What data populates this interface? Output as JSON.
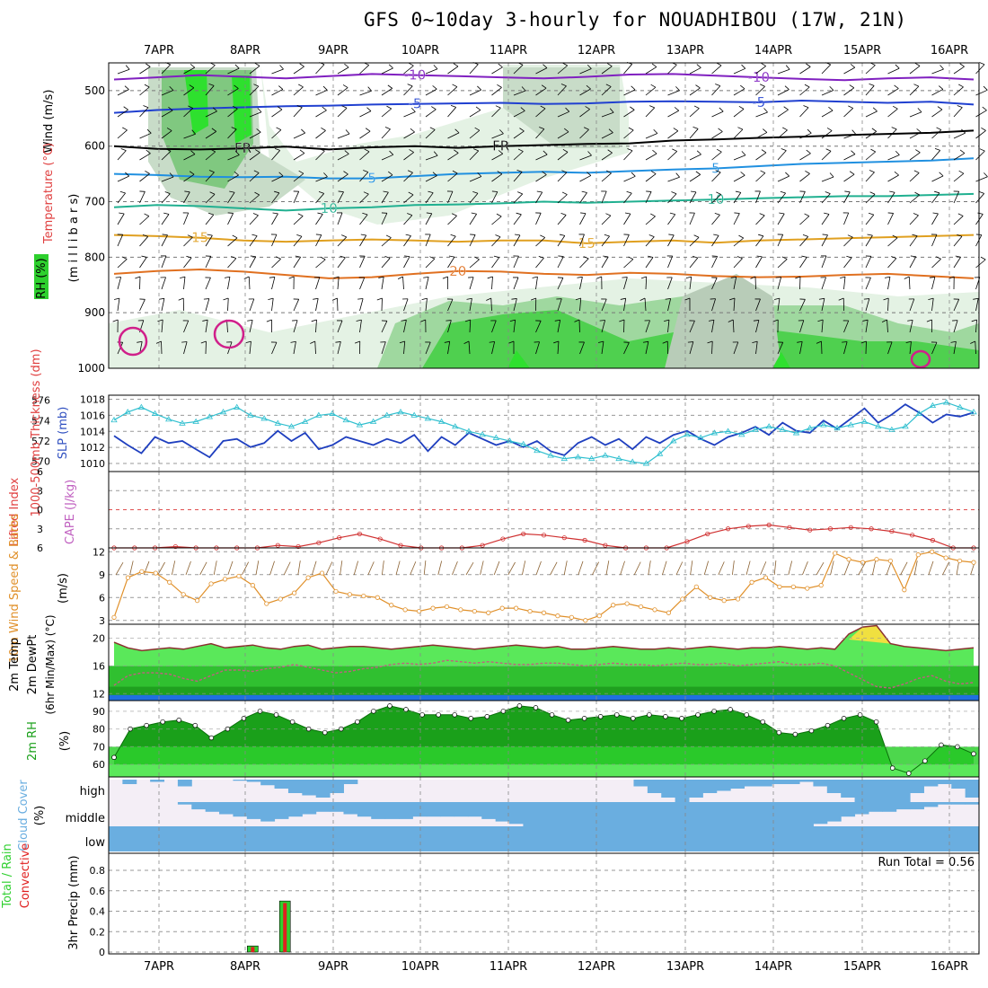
{
  "title": "GFS 0~10day 3-hourly for NOUADHIBOU (17W, 21N)",
  "date_labels": [
    "7APR",
    "8APR",
    "9APR",
    "10APR",
    "11APR",
    "12APR",
    "13APR",
    "14APR",
    "15APR",
    "16APR"
  ],
  "run_total": "Run Total = 0.56",
  "colors": {
    "wind_barb": "#000000",
    "thickness": "#1f3fbf",
    "slp": "#2fbfcf",
    "lifted": "#d03030",
    "wind10": "#e0902a",
    "temp": "#4fe04f",
    "rh": "#1aa01a",
    "cloud": "#6aaee0",
    "precip_total": "#2fd02f",
    "precip_conv": "#e02020"
  },
  "chart_data": [
    {
      "type": "contour",
      "panel": "upper-air",
      "ylabels": [
        "Wind (m/s)",
        "Temperature (°C)",
        "RH (%)",
        "(m i l l i b a r s)"
      ],
      "yticks": [
        500,
        600,
        700,
        800,
        900,
        1000
      ],
      "ylim": [
        450,
        1000
      ],
      "contour_labels": [
        "-10",
        "-5",
        "FR",
        "5",
        "10",
        "15",
        "20",
        "30"
      ],
      "isotherms": [
        {
          "name": "-10",
          "color": "#8020c0",
          "y": [
            480,
            476,
            472,
            475,
            478,
            474,
            470,
            472,
            474,
            476,
            478,
            475,
            471,
            470,
            473,
            476,
            479,
            481,
            478,
            476,
            480
          ]
        },
        {
          "name": "-5",
          "color": "#2040d0",
          "y": [
            540,
            535,
            532,
            530,
            528,
            527,
            525,
            524,
            523,
            522,
            524,
            523,
            520,
            519,
            520,
            521,
            518,
            520,
            522,
            520,
            525
          ]
        },
        {
          "name": "FR",
          "color": "#000000",
          "y": [
            600,
            605,
            606,
            604,
            601,
            606,
            602,
            600,
            603,
            600,
            598,
            596,
            595,
            590,
            588,
            585,
            583,
            580,
            578,
            576,
            572
          ]
        },
        {
          "name": "5",
          "color": "#2090e0",
          "y": [
            650,
            652,
            655,
            656,
            655,
            658,
            658,
            654,
            650,
            648,
            646,
            648,
            645,
            642,
            640,
            636,
            632,
            630,
            628,
            626,
            622
          ]
        },
        {
          "name": "10",
          "color": "#20b090",
          "y": [
            710,
            706,
            708,
            712,
            716,
            712,
            710,
            706,
            705,
            703,
            700,
            702,
            700,
            698,
            696,
            694,
            692,
            690,
            690,
            688,
            686
          ]
        },
        {
          "name": "15",
          "color": "#e0a020",
          "y": [
            760,
            762,
            765,
            770,
            772,
            770,
            768,
            770,
            772,
            770,
            770,
            775,
            772,
            770,
            774,
            770,
            768,
            766,
            764,
            762,
            760
          ]
        },
        {
          "name": "20",
          "color": "#e07020",
          "y": [
            830,
            825,
            822,
            826,
            832,
            838,
            836,
            830,
            825,
            826,
            830,
            832,
            828,
            830,
            834,
            836,
            835,
            832,
            830,
            834,
            838
          ]
        }
      ]
    },
    {
      "type": "line",
      "panel": "thickness-slp",
      "ylabels": [
        "1000-500mb Thickness (dm)",
        "SLP (mb)"
      ],
      "thickness_ticks": [
        570,
        572,
        574,
        576
      ],
      "slp_ticks": [
        1010,
        1012,
        1014,
        1016,
        1018
      ],
      "ylim_thickness": [
        569,
        576.5
      ],
      "ylim_slp": [
        1009,
        1018.5
      ],
      "series": [
        {
          "name": "1000-500mb Thickness",
          "values": [
            572.5,
            571.6,
            570.8,
            572.4,
            571.8,
            572.0,
            571.2,
            570.4,
            572.0,
            572.2,
            571.4,
            571.8,
            573.0,
            572.0,
            572.8,
            571.2,
            571.6,
            572.4,
            572.0,
            571.6,
            572.2,
            571.8,
            572.6,
            571.0,
            572.4,
            571.6,
            572.8,
            572.2,
            571.6,
            572.0,
            571.4,
            572.0,
            571.0,
            570.6,
            571.8,
            572.4,
            571.6,
            572.2,
            571.2,
            572.4,
            571.8,
            572.6,
            573.0,
            572.2,
            571.6,
            572.4,
            572.8,
            573.4,
            572.6,
            573.8,
            573.0,
            572.8,
            574.0,
            573.2,
            574.2,
            575.2,
            573.8,
            574.6,
            575.6,
            574.8,
            573.8,
            574.6,
            574.4,
            574.8
          ]
        },
        {
          "name": "SLP",
          "values": [
            1015.4,
            1016.4,
            1017.0,
            1016.2,
            1015.5,
            1015.0,
            1015.2,
            1015.8,
            1016.4,
            1017.0,
            1016.0,
            1015.6,
            1015.0,
            1014.6,
            1015.2,
            1016.0,
            1016.2,
            1015.4,
            1014.8,
            1015.2,
            1016.0,
            1016.4,
            1016.0,
            1015.6,
            1015.2,
            1014.6,
            1014.0,
            1013.6,
            1013.2,
            1012.8,
            1012.4,
            1011.6,
            1011.0,
            1010.6,
            1010.8,
            1010.6,
            1011.0,
            1010.6,
            1010.2,
            1010.0,
            1011.2,
            1012.8,
            1013.6,
            1013.2,
            1013.8,
            1014.0,
            1013.6,
            1014.2,
            1014.6,
            1014.2,
            1013.8,
            1014.4,
            1014.8,
            1014.4,
            1014.8,
            1015.2,
            1014.6,
            1014.2,
            1014.6,
            1016.2,
            1017.2,
            1017.6,
            1017.0,
            1016.4
          ]
        }
      ]
    },
    {
      "type": "line",
      "panel": "lifted-cape",
      "ylabels": [
        "Lifted Index",
        "CAPE (J/kg)"
      ],
      "yticks": [
        -6,
        -3,
        0,
        3,
        6
      ],
      "ytick_labels": [
        "6",
        "3",
        "0",
        "3",
        "6"
      ],
      "ylim": [
        -6,
        6
      ],
      "series": [
        {
          "name": "Lifted Index",
          "values": [
            6.2,
            6.4,
            6.0,
            5.8,
            6.2,
            6.4,
            6.2,
            6.0,
            5.6,
            5.8,
            5.2,
            4.4,
            3.8,
            4.6,
            5.6,
            6.2,
            6.4,
            6.0,
            5.6,
            4.6,
            3.8,
            4.0,
            4.4,
            4.8,
            5.6,
            6.2,
            6.4,
            6.0,
            5.0,
            3.8,
            3.0,
            2.6,
            2.4,
            2.8,
            3.2,
            3.0,
            2.8,
            3.0,
            3.4,
            4.0,
            4.8,
            6.0,
            6.4
          ]
        }
      ]
    },
    {
      "type": "line",
      "panel": "wind10",
      "ylabels": [
        "10m Wind Speed & Barbs",
        "(m/s)"
      ],
      "yticks": [
        3,
        6,
        9,
        12
      ],
      "ylim": [
        2.5,
        12.5
      ],
      "series": [
        {
          "name": "10m Wind Speed",
          "values": [
            3.4,
            8.6,
            9.4,
            9.2,
            8.0,
            6.4,
            5.6,
            7.8,
            8.4,
            8.8,
            7.6,
            5.2,
            5.8,
            6.6,
            8.6,
            9.2,
            6.8,
            6.4,
            6.2,
            6.0,
            5.0,
            4.4,
            4.2,
            4.6,
            4.8,
            4.4,
            4.2,
            4.0,
            4.6,
            4.6,
            4.2,
            4.0,
            3.6,
            3.4,
            3.0,
            3.6,
            5.0,
            5.2,
            4.8,
            4.4,
            4.0,
            5.8,
            7.4,
            6.0,
            5.6,
            5.8,
            8.0,
            8.6,
            7.4,
            7.4,
            7.2,
            7.6,
            11.8,
            11.0,
            10.6,
            11.0,
            10.8,
            7.0,
            11.6,
            12.0,
            11.2,
            10.8,
            10.6
          ]
        }
      ]
    },
    {
      "type": "area",
      "panel": "temp2m",
      "ylabels": [
        "2m Temp",
        "2m DewPt",
        "(6hr Min/Max) (°C)"
      ],
      "yticks": [
        12,
        16,
        20
      ],
      "ylim": [
        11,
        22
      ],
      "series": [
        {
          "name": "2m Temp",
          "values": [
            19.4,
            18.6,
            18.2,
            18.4,
            18.6,
            18.4,
            18.8,
            19.2,
            18.6,
            18.8,
            19.0,
            18.6,
            18.4,
            18.8,
            19.0,
            18.4,
            18.6,
            18.8,
            18.8,
            18.6,
            18.4,
            18.6,
            18.8,
            19.0,
            18.8,
            18.6,
            18.4,
            18.6,
            18.8,
            19.0,
            18.8,
            18.6,
            18.8,
            18.4,
            18.4,
            18.6,
            18.8,
            18.6,
            18.4,
            18.4,
            18.6,
            18.4,
            18.6,
            18.8,
            18.6,
            18.4,
            18.6,
            18.6,
            18.8,
            18.6,
            18.4,
            18.6,
            18.4,
            20.6,
            21.6,
            21.8,
            19.2,
            18.8,
            18.6,
            18.4,
            18.2,
            18.4,
            18.6
          ]
        },
        {
          "name": "2m DewPt",
          "values": [
            13.2,
            14.6,
            15.0,
            15.0,
            14.8,
            14.2,
            13.8,
            14.6,
            15.4,
            15.4,
            15.2,
            15.6,
            15.8,
            16.2,
            15.8,
            15.4,
            15.0,
            15.2,
            15.6,
            15.8,
            16.2,
            16.4,
            16.2,
            16.4,
            16.8,
            16.6,
            16.4,
            16.6,
            16.4,
            16.2,
            16.2,
            16.4,
            16.4,
            16.2,
            16.0,
            16.2,
            16.4,
            16.2,
            16.2,
            16.0,
            16.2,
            16.4,
            16.2,
            16.2,
            16.4,
            16.0,
            16.2,
            16.4,
            16.6,
            16.2,
            16.2,
            16.4,
            16.0,
            15.0,
            14.0,
            13.0,
            12.8,
            13.4,
            14.2,
            14.6,
            13.8,
            13.4,
            13.6
          ]
        }
      ]
    },
    {
      "type": "area",
      "panel": "rh2m",
      "ylabels": [
        "2m RH",
        "(%)"
      ],
      "yticks": [
        60,
        70,
        80,
        90
      ],
      "ylim": [
        53,
        96
      ],
      "series": [
        {
          "name": "2m RH",
          "values": [
            64,
            80,
            82,
            84,
            85,
            82,
            75,
            80,
            86,
            90,
            88,
            84,
            80,
            78,
            80,
            84,
            90,
            93,
            91,
            88,
            88,
            88,
            86,
            87,
            90,
            93,
            92,
            88,
            85,
            86,
            87,
            88,
            86,
            88,
            87,
            86,
            88,
            90,
            91,
            88,
            84,
            78,
            77,
            79,
            82,
            86,
            88,
            84,
            58,
            55,
            62,
            71,
            70,
            66
          ]
        }
      ]
    },
    {
      "type": "heatmap",
      "panel": "cloud-cover",
      "ylabels": [
        "Cloud Cover",
        "(%)"
      ],
      "levels": [
        "high",
        "middle",
        "low"
      ],
      "series": [
        {
          "name": "high",
          "values": [
            0,
            20,
            0,
            10,
            0,
            30,
            0,
            0,
            0,
            5,
            10,
            25,
            40,
            60,
            70,
            80,
            60,
            20,
            0,
            0,
            0,
            0,
            0,
            0,
            0,
            0,
            0,
            0,
            0,
            0,
            0,
            0,
            0,
            0,
            0,
            0,
            0,
            0,
            30,
            60,
            80,
            100,
            80,
            60,
            50,
            40,
            30,
            30,
            20,
            20,
            10,
            30,
            60,
            80,
            100,
            100,
            100,
            100,
            60,
            30,
            20,
            40,
            80
          ]
        },
        {
          "name": "middle",
          "values": [
            0,
            0,
            0,
            0,
            0,
            10,
            30,
            40,
            50,
            60,
            70,
            80,
            70,
            60,
            50,
            40,
            40,
            50,
            60,
            70,
            70,
            70,
            60,
            60,
            60,
            60,
            60,
            70,
            80,
            90,
            100,
            100,
            100,
            100,
            100,
            100,
            100,
            100,
            100,
            100,
            100,
            100,
            100,
            100,
            100,
            100,
            100,
            100,
            100,
            100,
            100,
            90,
            80,
            60,
            50,
            40,
            40,
            30,
            30,
            20,
            10,
            10,
            10
          ]
        },
        {
          "name": "low",
          "values": [
            100,
            100,
            100,
            100,
            100,
            100,
            100,
            100,
            100,
            100,
            100,
            100,
            100,
            100,
            100,
            100,
            100,
            100,
            100,
            100,
            100,
            100,
            100,
            100,
            100,
            100,
            100,
            100,
            100,
            100,
            100,
            100,
            100,
            100,
            100,
            100,
            100,
            100,
            100,
            100,
            100,
            100,
            100,
            100,
            100,
            100,
            100,
            100,
            100,
            100,
            100,
            100,
            100,
            100,
            100,
            100,
            100,
            100,
            100,
            100,
            100,
            100,
            100
          ]
        }
      ]
    },
    {
      "type": "bar",
      "panel": "precip",
      "ylabels": [
        "Total / Rain",
        "Convective",
        "3hr Precip (mm)"
      ],
      "yticks": [
        0,
        0.2,
        0.4,
        0.6,
        0.8
      ],
      "ylim": [
        0,
        0.95
      ],
      "series": [
        {
          "name": "Total / Rain",
          "values": [
            0.06,
            0.5
          ]
        },
        {
          "name": "Convective",
          "values": [
            0.05,
            0.48
          ]
        }
      ],
      "time_index": [
        10,
        12
      ]
    }
  ]
}
